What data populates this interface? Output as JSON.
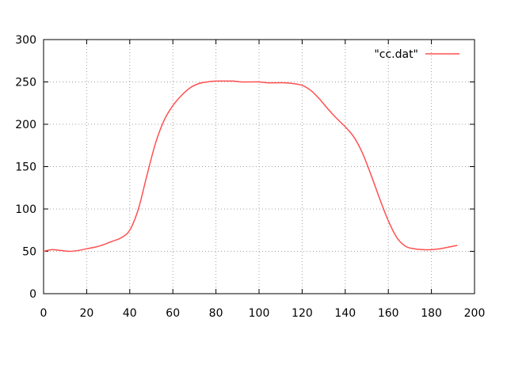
{
  "chart_data": {
    "type": "line",
    "title": "",
    "xlabel": "",
    "ylabel": "",
    "xlim": [
      0,
      200
    ],
    "ylim": [
      0,
      300
    ],
    "xticks": [
      0,
      20,
      40,
      60,
      80,
      100,
      120,
      140,
      160,
      180,
      200
    ],
    "yticks": [
      0,
      50,
      100,
      150,
      200,
      250,
      300
    ],
    "xtick_labels": [
      "0",
      "20",
      "40",
      "60",
      "80",
      "100",
      "120",
      "140",
      "160",
      "180",
      "200"
    ],
    "ytick_labels": [
      "0",
      "50",
      "100",
      "150",
      "200",
      "250",
      "300"
    ],
    "grid": true,
    "legend_position": "top-right",
    "series": [
      {
        "name": "\"cc.dat\"",
        "color": "#ff5050",
        "x": [
          0,
          4,
          8,
          12,
          16,
          20,
          24,
          28,
          32,
          36,
          40,
          44,
          48,
          52,
          56,
          60,
          64,
          68,
          72,
          76,
          80,
          84,
          88,
          92,
          96,
          100,
          104,
          108,
          112,
          116,
          120,
          124,
          128,
          132,
          136,
          140,
          144,
          148,
          152,
          156,
          160,
          164,
          168,
          172,
          176,
          180,
          184,
          188,
          192
        ],
        "y": [
          50,
          52,
          51,
          50,
          51,
          53,
          55,
          58,
          62,
          66,
          75,
          100,
          140,
          178,
          205,
          222,
          234,
          243,
          248,
          250,
          251,
          251,
          251,
          250,
          250,
          250,
          249,
          249,
          249,
          248,
          246,
          240,
          230,
          218,
          207,
          197,
          185,
          166,
          140,
          112,
          86,
          66,
          56,
          53,
          52,
          52,
          53,
          55,
          57
        ]
      }
    ]
  }
}
